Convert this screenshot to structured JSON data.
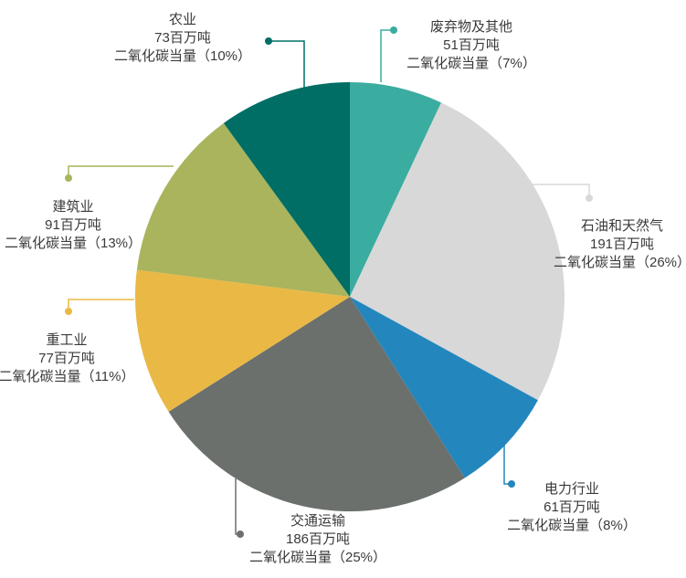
{
  "figure": {
    "background": "#ffffff",
    "text_color": "#3a3a3a"
  },
  "chart_data": {
    "type": "pie",
    "title": "",
    "start_angle_deg": 0,
    "direction": "clockwise",
    "legend_position": "outside-callouts",
    "slices": [
      {
        "label": "废弃物及其他",
        "amount_line": "51百万吨",
        "co2_line": "二氧化碳当量（7%）",
        "amount_mt_co2e": 51,
        "percent": 7,
        "color": "#3BACA0"
      },
      {
        "label": "石油和天然气",
        "amount_line": "191百万吨",
        "co2_line": "二氧化碳当量（26%）",
        "amount_mt_co2e": 191,
        "percent": 26,
        "color": "#D8D8D8"
      },
      {
        "label": "电力行业",
        "amount_line": "61百万吨",
        "co2_line": "二氧化碳当量（8%）",
        "amount_mt_co2e": 61,
        "percent": 8,
        "color": "#2387BE"
      },
      {
        "label": "交通运输",
        "amount_line": "186百万吨",
        "co2_line": "二氧化碳当量（25%）",
        "amount_mt_co2e": 186,
        "percent": 25,
        "color": "#6B706D"
      },
      {
        "label": "重工业",
        "amount_line": "77百万吨",
        "co2_line": "二氧化碳当量（11%）",
        "amount_mt_co2e": 77,
        "percent": 11,
        "color": "#EAB845"
      },
      {
        "label": "建筑业",
        "amount_line": "91百万吨",
        "co2_line": "二氧化碳当量（13%）",
        "amount_mt_co2e": 91,
        "percent": 13,
        "color": "#AAB45C"
      },
      {
        "label": "农业",
        "amount_line": "73百万吨",
        "co2_line": "二氧化碳当量（10%）",
        "amount_mt_co2e": 73,
        "percent": 10,
        "color": "#016E66"
      }
    ]
  }
}
